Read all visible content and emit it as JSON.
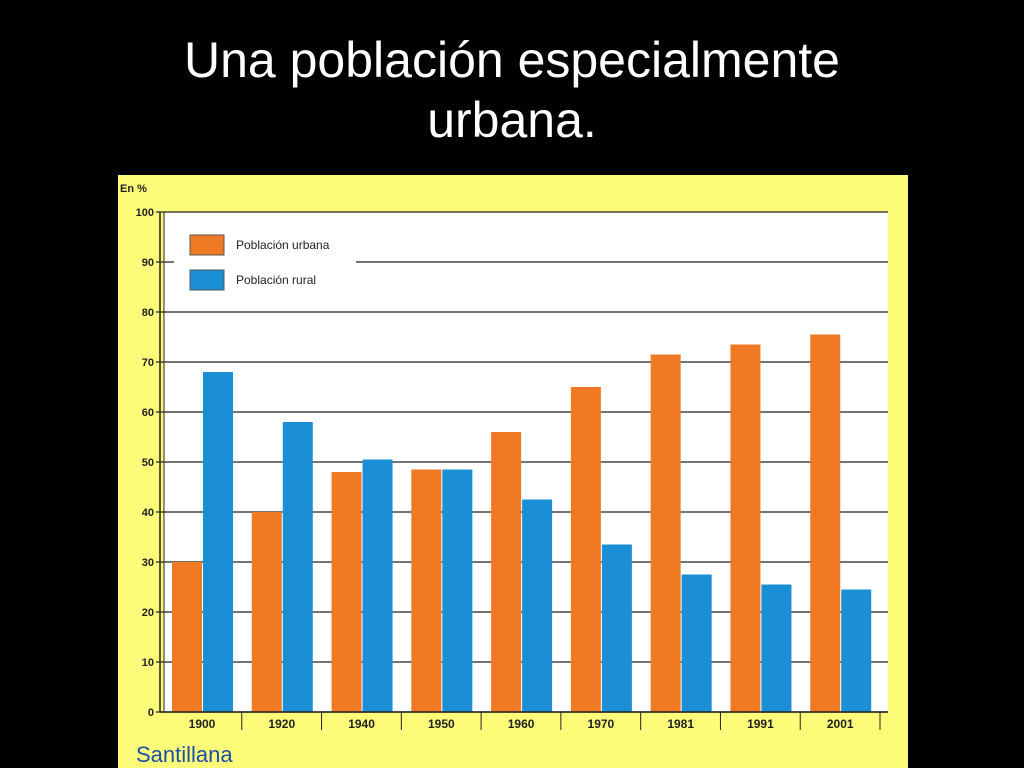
{
  "slide": {
    "title_line1": "Una población especialmente",
    "title_line2": "urbana."
  },
  "colors": {
    "background": "#000000",
    "panel": "#fdfd7a",
    "plot": "#ffffff",
    "urban": "#f07a24",
    "rural": "#1b8fd6"
  },
  "chart_data": {
    "type": "bar",
    "title": "",
    "xlabel": "",
    "ylabel": "En %",
    "ylim": [
      0,
      100
    ],
    "yticks": [
      0,
      10,
      20,
      30,
      40,
      50,
      60,
      70,
      80,
      90,
      100
    ],
    "grid": true,
    "legend_position": "top-left",
    "categories": [
      "1900",
      "1920",
      "1940",
      "1950",
      "1960",
      "1970",
      "1981",
      "1991",
      "2001"
    ],
    "series": [
      {
        "name": "Población urbana",
        "color": "#f07a24",
        "values": [
          30,
          40,
          48,
          48.5,
          56,
          65,
          71.5,
          73.5,
          75.5
        ]
      },
      {
        "name": "Población rural",
        "color": "#1b8fd6",
        "values": [
          68,
          58,
          50.5,
          48.5,
          42.5,
          33.5,
          27.5,
          25.5,
          24.5
        ]
      }
    ],
    "source": "Santillana"
  }
}
